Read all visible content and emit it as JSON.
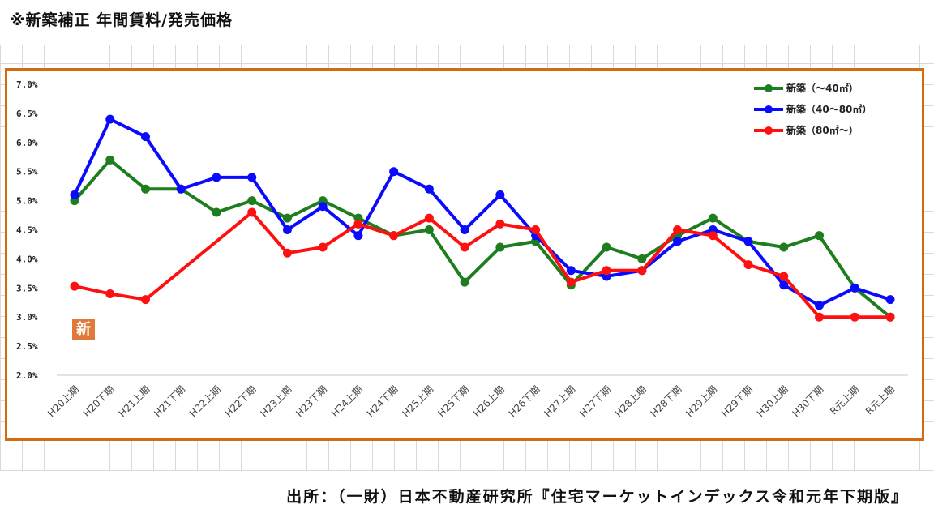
{
  "header": {
    "title": "※新築補正 年間賃料/発売価格"
  },
  "footer": {
    "source": "出所：（一財）日本不動産研究所『住宅マーケットインデックス令和元年下期版』"
  },
  "badge": {
    "label": "新"
  },
  "chart_data": {
    "type": "line",
    "title": "",
    "xlabel": "",
    "ylabel": "",
    "ylim": [
      0.02,
      0.07
    ],
    "yticks": [
      {
        "value": 0.07,
        "label": "7.0%"
      },
      {
        "value": 0.065,
        "label": "6.5%"
      },
      {
        "value": 0.06,
        "label": "6.0%"
      },
      {
        "value": 0.055,
        "label": "5.5%"
      },
      {
        "value": 0.05,
        "label": "5.0%"
      },
      {
        "value": 0.045,
        "label": "4.5%"
      },
      {
        "value": 0.04,
        "label": "4.0%"
      },
      {
        "value": 0.035,
        "label": "3.5%"
      },
      {
        "value": 0.03,
        "label": "3.0%"
      },
      {
        "value": 0.025,
        "label": "2.5%"
      },
      {
        "value": 0.02,
        "label": "2.0%"
      }
    ],
    "categories": [
      "H20上期",
      "H20下期",
      "H21上期",
      "H21下期",
      "H22上期",
      "H22下期",
      "H23上期",
      "H23下期",
      "H24上期",
      "H24下期",
      "H25上期",
      "H25下期",
      "H26上期",
      "H26下期",
      "H27上期",
      "H27下期",
      "H28上期",
      "H28下期",
      "H29上期",
      "H29下期",
      "H30上期",
      "H30下期",
      "R元上期",
      "R元上期"
    ],
    "legend_position": "top-right",
    "grid": false,
    "series": [
      {
        "name": "新築（～40㎡）",
        "color": "#1e7d1e",
        "values": [
          0.05,
          0.057,
          0.052,
          0.052,
          0.048,
          0.05,
          0.047,
          0.05,
          0.047,
          0.044,
          0.045,
          0.036,
          0.042,
          0.043,
          0.0355,
          0.042,
          0.04,
          0.044,
          0.047,
          0.043,
          0.042,
          0.044,
          0.035,
          0.03
        ]
      },
      {
        "name": "新築（40～80㎡）",
        "color": "#0a0aff",
        "values": [
          0.051,
          0.064,
          0.061,
          0.052,
          0.054,
          0.054,
          0.045,
          0.049,
          0.044,
          0.055,
          0.052,
          0.045,
          0.051,
          0.044,
          0.038,
          0.037,
          0.038,
          0.043,
          0.045,
          0.043,
          0.0355,
          0.032,
          0.035,
          0.033
        ]
      },
      {
        "name": "新築（80㎡～）",
        "color": "#ff1010",
        "values": [
          0.0353,
          0.034,
          0.033,
          null,
          null,
          0.048,
          0.041,
          0.042,
          0.046,
          0.044,
          0.047,
          0.042,
          0.046,
          0.045,
          0.036,
          0.038,
          0.038,
          0.045,
          0.044,
          0.039,
          0.037,
          0.03,
          0.03,
          0.03
        ]
      }
    ]
  }
}
